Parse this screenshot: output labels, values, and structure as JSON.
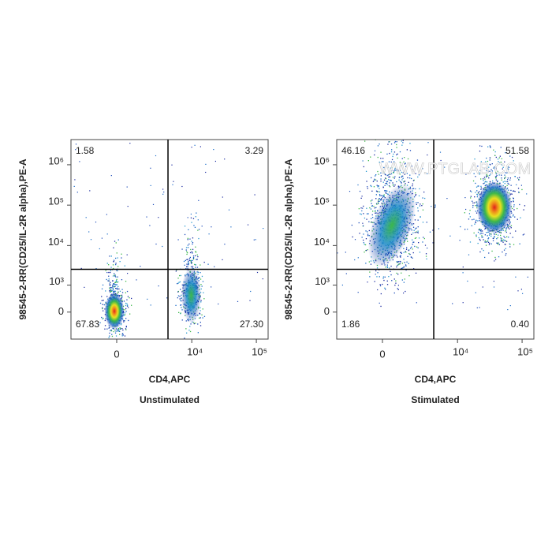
{
  "chart_data": [
    {
      "type": "quadrant_density",
      "caption": "Unstimulated",
      "x_label": "CD4,APC",
      "y_label": "98545-2-RR(CD25/IL-2R alpha),PE-A",
      "xscale": "biexponential",
      "yscale": "biexponential",
      "xlim": [
        -3400,
        152000
      ],
      "ylim": [
        -1000,
        4200000
      ],
      "xticks": [
        0,
        {
          "value": 10000,
          "label": "10⁴"
        },
        {
          "value": 100000,
          "label": "10⁵"
        }
      ],
      "yticks": [
        0,
        {
          "value": 1000,
          "label": "10³"
        },
        {
          "value": 10000,
          "label": "10⁴"
        },
        {
          "value": 100000,
          "label": "10⁵"
        },
        {
          "value": 1000000,
          "label": "10⁶"
        }
      ],
      "gates": {
        "x": 4200,
        "y": 2560
      },
      "quadrants": {
        "values": [
          1.58,
          3.29,
          67.83,
          27.3
        ],
        "value_labels": [
          "1.58",
          "3.29",
          "67.83",
          "27.30"
        ]
      }
    },
    {
      "type": "quadrant_density",
      "caption": "Stimulated",
      "x_label": "CD4,APC",
      "y_label": "98545-2-RR(CD25/IL-2R alpha),PE-A",
      "watermark": "WWW.PTGLAB.COM",
      "xscale": "biexponential",
      "yscale": "biexponential",
      "xlim": [
        -3400,
        152000
      ],
      "ylim": [
        -1000,
        4200000
      ],
      "xticks": [
        0,
        {
          "value": 10000,
          "label": "10⁴"
        },
        {
          "value": 100000,
          "label": "10⁵"
        }
      ],
      "yticks": [
        0,
        {
          "value": 1000,
          "label": "10³"
        },
        {
          "value": 10000,
          "label": "10⁴"
        },
        {
          "value": 100000,
          "label": "10⁵"
        },
        {
          "value": 1000000,
          "label": "10⁶"
        }
      ],
      "gates": {
        "x": 4200,
        "y": 2560
      },
      "quadrants": {
        "values": [
          46.16,
          51.58,
          1.86,
          0.4
        ],
        "value_labels": [
          "46.16",
          "51.58",
          "1.86",
          "0.40"
        ]
      }
    }
  ]
}
